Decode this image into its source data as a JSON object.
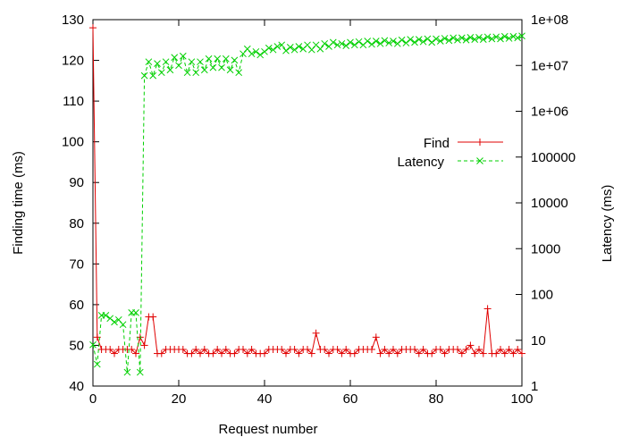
{
  "chart_data": {
    "type": "line",
    "xlabel": "Request number",
    "ylabel_left": "Finding time (ms)",
    "ylabel_right": "Latency (ms)",
    "xlim": [
      0,
      100
    ],
    "ylim_left": [
      40,
      130
    ],
    "ylim_right": [
      1,
      100000000
    ],
    "right_axis_scale": "log",
    "x_ticks": [
      "0",
      "20",
      "40",
      "60",
      "80",
      "100"
    ],
    "y_ticks_left": [
      "40",
      "50",
      "60",
      "70",
      "80",
      "90",
      "100",
      "110",
      "120",
      "130"
    ],
    "y_ticks_right": [
      "1",
      "10",
      "100",
      "1000",
      "10000",
      "100000",
      "1e+06",
      "1e+07",
      "1e+08"
    ],
    "legend_position": "right-middle",
    "grid": false,
    "series": [
      {
        "name": "Find",
        "axis": "left",
        "color": "#e00000",
        "marker": "plus",
        "line_style": "solid",
        "x": [
          0,
          1,
          2,
          3,
          4,
          5,
          6,
          7,
          8,
          9,
          10,
          11,
          12,
          13,
          14,
          15,
          16,
          17,
          18,
          19,
          20,
          21,
          22,
          23,
          24,
          25,
          26,
          27,
          28,
          29,
          30,
          31,
          32,
          33,
          34,
          35,
          36,
          37,
          38,
          39,
          40,
          41,
          42,
          43,
          44,
          45,
          46,
          47,
          48,
          49,
          50,
          51,
          52,
          53,
          54,
          55,
          56,
          57,
          58,
          59,
          60,
          61,
          62,
          63,
          64,
          65,
          66,
          67,
          68,
          69,
          70,
          71,
          72,
          73,
          74,
          75,
          76,
          77,
          78,
          79,
          80,
          81,
          82,
          83,
          84,
          85,
          86,
          87,
          88,
          89,
          90,
          91,
          92,
          93,
          94,
          95,
          96,
          97,
          98,
          99,
          100
        ],
        "values": [
          128,
          52,
          49,
          49,
          49,
          48,
          49,
          49,
          49,
          49,
          48,
          52,
          50,
          57,
          57,
          48,
          48,
          49,
          49,
          49,
          49,
          49,
          48,
          48,
          49,
          48,
          49,
          48,
          48,
          49,
          48,
          49,
          48,
          48,
          49,
          49,
          48,
          49,
          48,
          48,
          48,
          49,
          49,
          49,
          49,
          48,
          49,
          49,
          48,
          49,
          49,
          48,
          53,
          49,
          49,
          48,
          49,
          49,
          48,
          49,
          48,
          48,
          49,
          49,
          49,
          49,
          52,
          48,
          49,
          48,
          49,
          48,
          49,
          49,
          49,
          49,
          48,
          49,
          48,
          48,
          49,
          49,
          48,
          49,
          49,
          49,
          48,
          49,
          50,
          48,
          49,
          48,
          59,
          48,
          48,
          49,
          48,
          49,
          48,
          49,
          48
        ]
      },
      {
        "name": "Latency",
        "axis": "right",
        "color": "#00d000",
        "marker": "cross",
        "line_style": "dashed",
        "x": [
          0,
          1,
          2,
          3,
          4,
          5,
          6,
          7,
          8,
          9,
          10,
          11,
          12,
          13,
          14,
          15,
          16,
          17,
          18,
          19,
          20,
          21,
          22,
          23,
          24,
          25,
          26,
          27,
          28,
          29,
          30,
          31,
          32,
          33,
          34,
          35,
          36,
          37,
          38,
          39,
          40,
          41,
          42,
          43,
          44,
          45,
          46,
          47,
          48,
          49,
          50,
          51,
          52,
          53,
          54,
          55,
          56,
          57,
          58,
          59,
          60,
          61,
          62,
          63,
          64,
          65,
          66,
          67,
          68,
          69,
          70,
          71,
          72,
          73,
          74,
          75,
          76,
          77,
          78,
          79,
          80,
          81,
          82,
          83,
          84,
          85,
          86,
          87,
          88,
          89,
          90,
          91,
          92,
          93,
          94,
          95,
          96,
          97,
          98,
          99,
          100
        ],
        "values": [
          8,
          3,
          35,
          35,
          30,
          25,
          28,
          22,
          2,
          40,
          40,
          2,
          6000000,
          12000000,
          6000000,
          11000000,
          7000000,
          12000000,
          8000000,
          15000000,
          10000000,
          16000000,
          7000000,
          12000000,
          7000000,
          12000000,
          8000000,
          14000000,
          9000000,
          14000000,
          9000000,
          14000000,
          8000000,
          13000000,
          7000000,
          18000000,
          23000000,
          18000000,
          20000000,
          17000000,
          20000000,
          24000000,
          22000000,
          26000000,
          28000000,
          21000000,
          25000000,
          22000000,
          26000000,
          23000000,
          28000000,
          22000000,
          28000000,
          23000000,
          30000000,
          26000000,
          32000000,
          28000000,
          30000000,
          27000000,
          32000000,
          28000000,
          33000000,
          28000000,
          34000000,
          29000000,
          34000000,
          30000000,
          35000000,
          31000000,
          34000000,
          30000000,
          36000000,
          31000000,
          37000000,
          32000000,
          37000000,
          33000000,
          38000000,
          32000000,
          38000000,
          34000000,
          39000000,
          35000000,
          40000000,
          36000000,
          40000000,
          36000000,
          41000000,
          37000000,
          41000000,
          37000000,
          42000000,
          38000000,
          42000000,
          38000000,
          43000000,
          39000000,
          43000000,
          40000000,
          44000000
        ]
      }
    ]
  }
}
